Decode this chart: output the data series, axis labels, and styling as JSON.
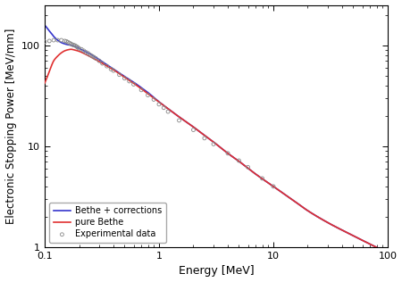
{
  "title": "",
  "xlabel": "Energy [MeV]",
  "ylabel": "Electronic Stopping Power [MeV/mm]",
  "xlim": [
    0.1,
    100
  ],
  "ylim": [
    1,
    250
  ],
  "legend_entries": [
    "pure Bethe",
    "Bethe + corrections",
    "Experimental data"
  ],
  "red_color": "#e03030",
  "blue_color": "#3535cc",
  "dot_color": "#888888",
  "background_color": "#ffffff",
  "red_energy": [
    0.1,
    0.105,
    0.11,
    0.115,
    0.12,
    0.13,
    0.14,
    0.15,
    0.16,
    0.17,
    0.18,
    0.2,
    0.22,
    0.25,
    0.3,
    0.35,
    0.4,
    0.5,
    0.6,
    0.7,
    0.8,
    1.0,
    1.2,
    1.5,
    2.0,
    2.5,
    3.0,
    4.0,
    5.0,
    7.0,
    10.0,
    15.0,
    20.0,
    30.0,
    50.0,
    100.0
  ],
  "red_sp": [
    42,
    48,
    55,
    63,
    70,
    78,
    84,
    88,
    90,
    91,
    90,
    87,
    83,
    77,
    69,
    62,
    57,
    48,
    42,
    37,
    33,
    27.5,
    23.5,
    19.5,
    15.5,
    12.8,
    11.0,
    8.5,
    7.1,
    5.3,
    4.0,
    2.9,
    2.3,
    1.75,
    1.3,
    0.88
  ],
  "blue_energy": [
    0.1,
    0.105,
    0.11,
    0.115,
    0.12,
    0.13,
    0.14,
    0.15,
    0.16,
    0.17,
    0.18,
    0.2,
    0.22,
    0.25,
    0.3,
    0.35,
    0.4,
    0.5,
    0.6,
    0.7,
    0.8,
    1.0,
    1.2,
    1.5,
    2.0,
    2.5,
    3.0,
    4.0,
    5.0,
    7.0,
    10.0,
    15.0,
    20.0,
    30.0,
    50.0,
    100.0
  ],
  "blue_sp": [
    158,
    148,
    138,
    130,
    122,
    112,
    106,
    103,
    101,
    100,
    98,
    93,
    88,
    82,
    72,
    64,
    58,
    49,
    43,
    38,
    34,
    27.5,
    23.5,
    19.5,
    15.5,
    12.8,
    11.0,
    8.5,
    7.1,
    5.3,
    4.0,
    2.9,
    2.3,
    1.75,
    1.3,
    0.88
  ],
  "exp_energy": [
    0.1,
    0.11,
    0.12,
    0.13,
    0.14,
    0.15,
    0.155,
    0.16,
    0.165,
    0.17,
    0.175,
    0.18,
    0.185,
    0.19,
    0.195,
    0.2,
    0.21,
    0.22,
    0.23,
    0.24,
    0.25,
    0.26,
    0.27,
    0.28,
    0.3,
    0.32,
    0.35,
    0.38,
    0.4,
    0.45,
    0.5,
    0.55,
    0.6,
    0.7,
    0.8,
    0.9,
    1.0,
    1.1,
    1.2,
    1.5,
    2.0,
    2.5,
    3.0,
    4.0,
    5.0,
    6.0,
    8.0,
    10.0
  ],
  "exp_sp": [
    108,
    110,
    112,
    112,
    112,
    110,
    109,
    107,
    105,
    103,
    101,
    100,
    99,
    97,
    95,
    93,
    91,
    88,
    85,
    83,
    80,
    78,
    76,
    74,
    70,
    66,
    62,
    58,
    56,
    51,
    47,
    44,
    41,
    36,
    32,
    29,
    26,
    24,
    22,
    18,
    14.5,
    12,
    10.5,
    8.5,
    7.2,
    6.2,
    4.8,
    4.0
  ]
}
